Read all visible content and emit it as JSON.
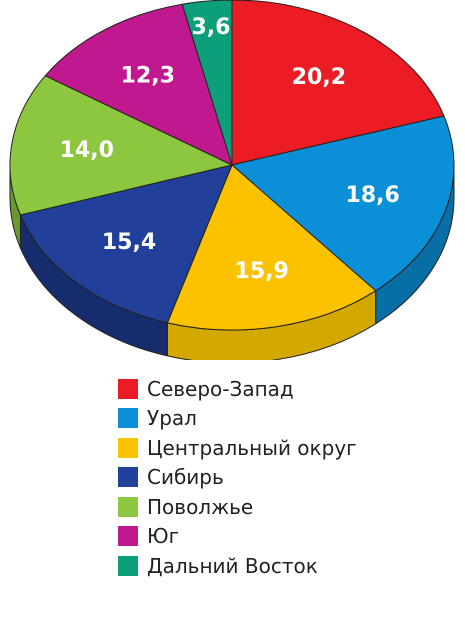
{
  "chart_data": {
    "type": "pie",
    "title": "",
    "legend_position": "bottom",
    "slices": [
      {
        "name": "Северо-Запад",
        "value": 20.2,
        "label": "20,2",
        "color": "#ec1c24",
        "side_color": "#b51218"
      },
      {
        "name": "Урал",
        "value": 18.6,
        "label": "18,6",
        "color": "#0b8fd6",
        "side_color": "#086ea6"
      },
      {
        "name": "Центральный округ",
        "value": 15.9,
        "label": "15,9",
        "color": "#fcc200",
        "side_color": "#d3a900"
      },
      {
        "name": "Сибирь",
        "value": 15.4,
        "label": "15,4",
        "color": "#21409a",
        "side_color": "#162c6d"
      },
      {
        "name": "Поволжье",
        "value": 14.0,
        "label": "14,0",
        "color": "#8dc63f",
        "side_color": "#6a9a2c"
      },
      {
        "name": "Юг",
        "value": 12.3,
        "label": "12,3",
        "color": "#c0198f",
        "side_color": "#8e126a"
      },
      {
        "name": "Дальний Восток",
        "value": 3.6,
        "label": "3,6",
        "color": "#0d9e7a",
        "side_color": "#087458"
      }
    ]
  }
}
